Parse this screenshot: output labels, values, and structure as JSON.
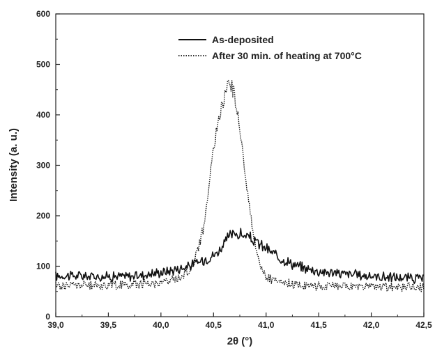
{
  "chart_data": {
    "type": "line",
    "title": "",
    "xlabel": "2θ (°)",
    "ylabel": "Intensity (a. u.)",
    "xlim": [
      39.0,
      42.5
    ],
    "ylim": [
      0,
      600
    ],
    "xticks": [
      39.0,
      39.5,
      40.0,
      40.5,
      41.0,
      41.5,
      42.0,
      42.5
    ],
    "xtick_labels": [
      "39,0",
      "39,5",
      "40,0",
      "40,5",
      "41,0",
      "41,5",
      "42,0",
      "42,5"
    ],
    "yticks": [
      0,
      100,
      200,
      300,
      400,
      500,
      600
    ],
    "ytick_labels": [
      "0",
      "100",
      "200",
      "300",
      "400",
      "500",
      "600"
    ],
    "grid": false,
    "legend_position": "top-right",
    "series": [
      {
        "name": "As-deposited",
        "style": "solid",
        "color": "#111111",
        "x": [
          39.0,
          39.1,
          39.2,
          39.3,
          39.4,
          39.5,
          39.6,
          39.7,
          39.8,
          39.9,
          40.0,
          40.1,
          40.2,
          40.3,
          40.4,
          40.5,
          40.55,
          40.6,
          40.65,
          40.7,
          40.75,
          40.8,
          40.85,
          40.9,
          41.0,
          41.1,
          41.2,
          41.3,
          41.4,
          41.5,
          41.6,
          41.7,
          41.8,
          41.9,
          42.0,
          42.1,
          42.2,
          42.3,
          42.4,
          42.5
        ],
        "y": [
          80,
          82,
          81,
          80,
          80,
          80,
          80,
          80,
          82,
          85,
          88,
          92,
          97,
          103,
          112,
          122,
          130,
          145,
          160,
          165,
          163,
          160,
          155,
          148,
          135,
          120,
          110,
          100,
          95,
          90,
          88,
          86,
          84,
          82,
          80,
          79,
          78,
          77,
          76,
          75
        ]
      },
      {
        "name": "After 30 min. of heating at 700°C",
        "style": "dotted",
        "color": "#111111",
        "x": [
          39.0,
          39.1,
          39.2,
          39.3,
          39.4,
          39.5,
          39.6,
          39.7,
          39.8,
          39.9,
          40.0,
          40.1,
          40.2,
          40.3,
          40.4,
          40.45,
          40.5,
          40.55,
          40.6,
          40.63,
          40.66,
          40.7,
          40.75,
          40.8,
          40.85,
          40.9,
          40.95,
          41.0,
          41.1,
          41.2,
          41.3,
          41.4,
          41.5,
          41.6,
          41.7,
          41.8,
          41.9,
          42.0,
          42.1,
          42.2,
          42.3,
          42.4,
          42.5
        ],
        "y": [
          62,
          62,
          63,
          62,
          62,
          63,
          63,
          64,
          65,
          66,
          68,
          72,
          80,
          100,
          170,
          250,
          330,
          395,
          430,
          455,
          468,
          440,
          370,
          290,
          200,
          140,
          100,
          78,
          68,
          65,
          63,
          62,
          61,
          61,
          60,
          60,
          60,
          60,
          59,
          59,
          59,
          59,
          58
        ]
      }
    ]
  }
}
